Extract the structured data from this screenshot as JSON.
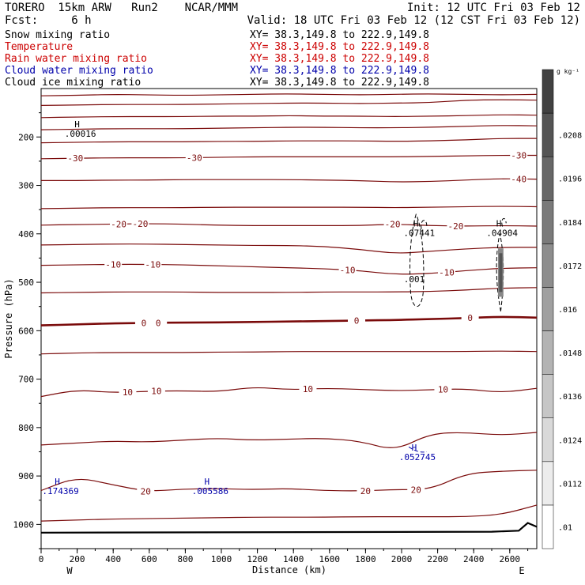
{
  "header": {
    "model": "TORERO  15km ARW   Run2    NCAR/MMM",
    "init": "Init: 12 UTC Fri 03 Feb 12",
    "fcst": "Fcst:     6 h",
    "valid": "Valid: 18 UTC Fri 03 Feb 12 (12 CST Fri 03 Feb 12)"
  },
  "fields": [
    {
      "name": "Snow mixing ratio",
      "xy": "XY=  38.3,149.8 to 222.9,149.8",
      "name_color": "#000000",
      "xy_color": "#000000"
    },
    {
      "name": "Temperature",
      "xy": "XY=  38.3,149.8 to 222.9,149.8",
      "name_color": "#cc0000",
      "xy_color": "#cc0000"
    },
    {
      "name": "Rain water mixing ratio",
      "xy": "XY=  38.3,149.8 to 222.9,149.8",
      "name_color": "#cc0000",
      "xy_color": "#cc0000"
    },
    {
      "name": "Cloud water mixing ratio",
      "xy": "XY=  38.3,149.8 to 222.9,149.8",
      "name_color": "#0000aa",
      "xy_color": "#0000aa"
    },
    {
      "name": "Cloud ice mixing ratio",
      "xy": "XY=  38.3,149.8 to 222.9,149.8",
      "name_color": "#000000",
      "xy_color": "#000000"
    }
  ],
  "colors": {
    "temperature": "#7a0a0a",
    "cloud_water": "#0000aa",
    "axes": "#000000"
  },
  "chart_data": {
    "type": "contour-cross-section",
    "xlabel": "Distance (km)",
    "ylabel": "Pressure (hPa)",
    "x_ticks": [
      0,
      200,
      400,
      600,
      800,
      1000,
      1200,
      1400,
      1600,
      1800,
      2000,
      2200,
      2400,
      2600
    ],
    "x_range": [
      0,
      2750
    ],
    "y_ticks": [
      200,
      300,
      400,
      500,
      600,
      700,
      800,
      900,
      1000
    ],
    "y_range": [
      100,
      1050
    ],
    "end_labels": {
      "left": "W",
      "right": "E"
    },
    "colorbar": {
      "unit": "g kg⁻¹",
      "ticks": [
        ".01",
        ".0112",
        ".0124",
        ".0136",
        ".0148",
        ".016",
        ".0172",
        ".0184",
        ".0196",
        ".0208"
      ],
      "values": [
        0.01,
        0.0112,
        0.0124,
        0.0136,
        0.0148,
        0.016,
        0.0172,
        0.0184,
        0.0196,
        0.0208
      ]
    },
    "temperature_contours": [
      {
        "p": [
          115,
          114,
          112,
          113,
          114,
          113,
          112,
          111,
          112,
          113,
          112,
          111,
          112,
          113,
          112
        ]
      },
      {
        "p": [
          135,
          134,
          133,
          133,
          133,
          132,
          131,
          130,
          130,
          131,
          130,
          129,
          124,
          123,
          124
        ]
      },
      {
        "p": [
          160,
          159,
          158,
          158,
          158,
          157,
          157,
          156,
          157,
          157,
          158,
          157,
          156,
          154,
          155
        ]
      },
      {
        "p": [
          185,
          184,
          183,
          183,
          183,
          182,
          181,
          180,
          180,
          181,
          181,
          180,
          178,
          176,
          177
        ]
      },
      {
        "p": [
          212,
          211,
          210,
          210,
          210,
          209,
          209,
          208,
          208,
          208,
          209,
          208,
          206,
          203,
          203
        ]
      },
      {
        "p": [
          245,
          244,
          243,
          243,
          243,
          242,
          241,
          241,
          241,
          241,
          241,
          240,
          239,
          238,
          238
        ],
        "label": "-30",
        "label_at": [
          190,
          850,
          2650
        ]
      },
      {
        "p": [
          290,
          290,
          289,
          289,
          288,
          288,
          288,
          288,
          289,
          290,
          293,
          292,
          289,
          286,
          287
        ],
        "label": "-40",
        "label_at": [
          2650
        ]
      },
      {
        "p": [
          348,
          347,
          346,
          346,
          346,
          345,
          345,
          345,
          345,
          345,
          346,
          345,
          344,
          343,
          344
        ]
      },
      {
        "p": [
          382,
          381,
          380,
          379,
          380,
          382,
          383,
          383,
          383,
          383,
          380,
          383,
          384,
          383,
          384
        ],
        "label": "-20",
        "label_at": [
          430,
          550,
          1950,
          2300
        ]
      },
      {
        "p": [
          423,
          422,
          421,
          421,
          422,
          423,
          424,
          424,
          426,
          432,
          441,
          436,
          431,
          428,
          428
        ]
      },
      {
        "p": [
          465,
          464,
          463,
          463,
          464,
          466,
          468,
          470,
          472,
          476,
          484,
          482,
          476,
          471,
          470
        ],
        "label": "-10",
        "label_at": [
          400,
          620,
          1700,
          2250
        ]
      },
      {
        "p": [
          522,
          521,
          520,
          520,
          520,
          521,
          521,
          521,
          520,
          520,
          520,
          519,
          516,
          512,
          511
        ]
      },
      {
        "p": [
          589,
          587,
          585,
          584,
          583,
          583,
          582,
          581,
          580,
          579,
          578,
          576,
          574,
          571,
          573
        ],
        "label": "0",
        "label_at": [
          570,
          650,
          1750,
          2380
        ],
        "bold": true
      },
      {
        "p": [
          648,
          646,
          645,
          645,
          645,
          644,
          644,
          643,
          643,
          643,
          643,
          643,
          643,
          642,
          643
        ]
      },
      {
        "p": [
          736,
          722,
          728,
          725,
          724,
          726,
          716,
          722,
          719,
          721,
          724,
          722,
          720,
          728,
          719
        ],
        "label": "10",
        "label_at": [
          480,
          640,
          1480,
          2230
        ]
      },
      {
        "p": [
          836,
          832,
          828,
          830,
          826,
          822,
          826,
          824,
          822,
          828,
          848,
          812,
          810,
          816,
          810
        ]
      },
      {
        "p": [
          930,
          902,
          918,
          932,
          927,
          926,
          928,
          926,
          930,
          931,
          928,
          928,
          895,
          890,
          888
        ],
        "label": "20",
        "label_at": [
          580,
          1800,
          2080
        ]
      },
      {
        "p": [
          993,
          991,
          989,
          988,
          987,
          986,
          985,
          985,
          985,
          984,
          984,
          984,
          984,
          980,
          960
        ]
      }
    ],
    "terrain": {
      "x": [
        0,
        2500,
        2650,
        2700,
        2750
      ],
      "p": [
        1017,
        1015,
        1013,
        997,
        1005
      ]
    },
    "cloud_water_max": [
      {
        "x": 90,
        "p": 918,
        "value": ".174369"
      },
      {
        "x": 920,
        "p": 918,
        "value": ".005586"
      },
      {
        "x": 2070,
        "p": 848,
        "value": ".052745"
      }
    ],
    "snow_max": [
      {
        "x": 2080,
        "p": 385,
        "value": ".07441"
      },
      {
        "x": 2540,
        "p": 385,
        "value": ".04904"
      }
    ],
    "ice_max": [
      {
        "x": 200,
        "p": 180,
        "value": ".00016"
      }
    ],
    "annotation": {
      "x": 2070,
      "p": 493,
      "value": ".001"
    }
  }
}
